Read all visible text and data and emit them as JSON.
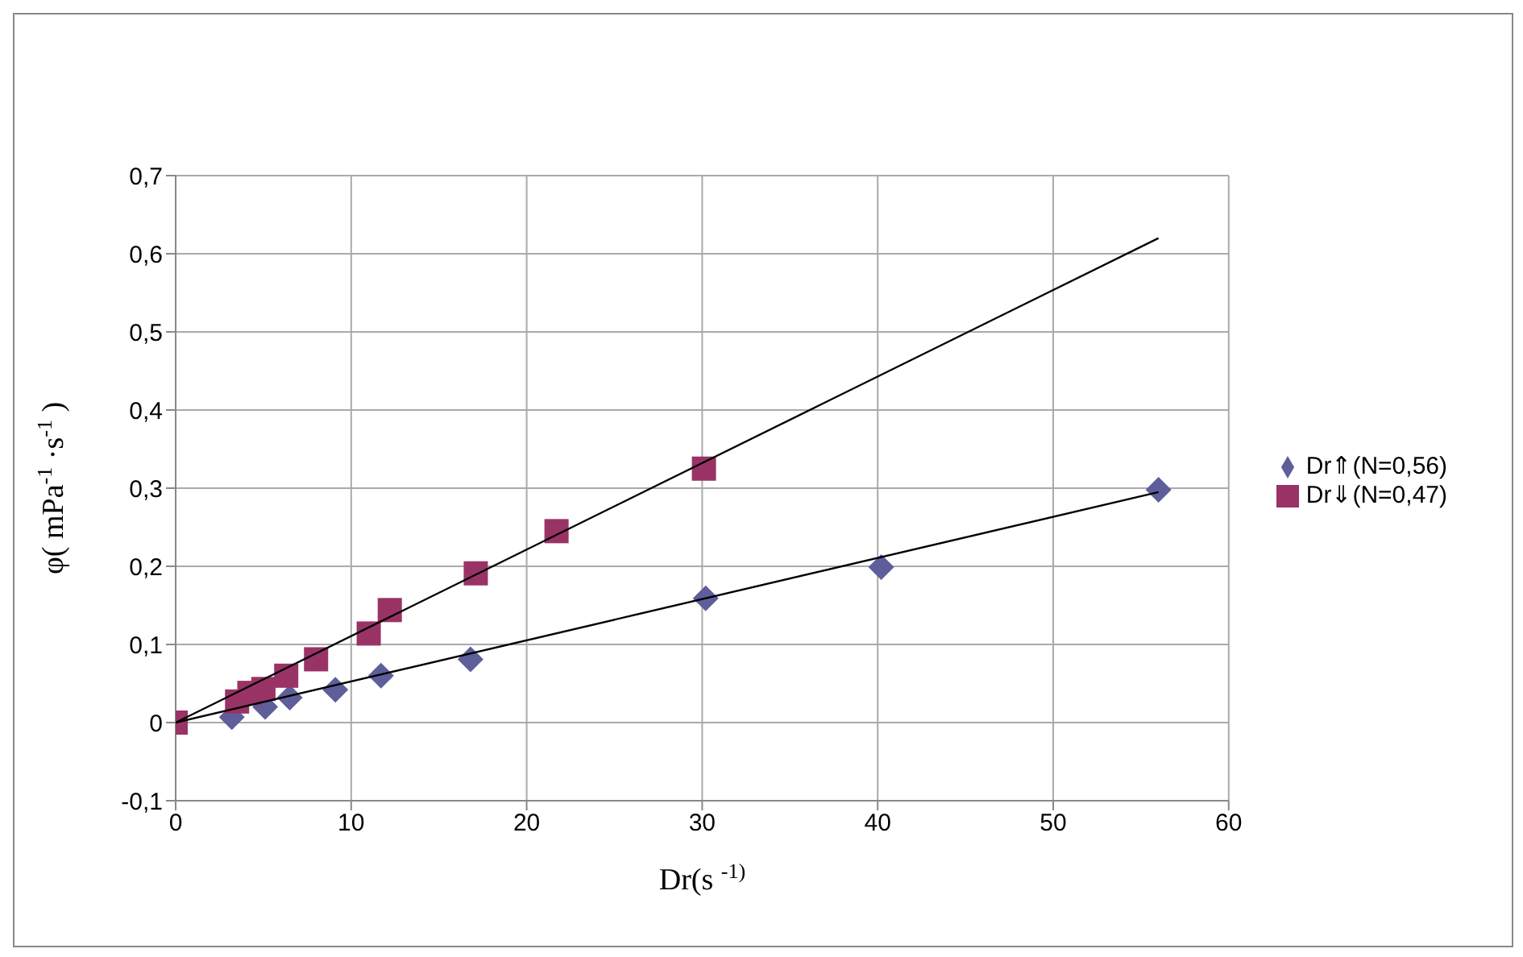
{
  "chart_data": {
    "type": "scatter",
    "xlabel": "Dr(s $^{-1)}$",
    "ylabel": "φ( mPa$^{-1}$ ·s$^{-1}$ )",
    "xlim": [
      0,
      60
    ],
    "xticks": [
      0,
      10,
      20,
      30,
      40,
      50,
      60
    ],
    "ylim": [
      -0.1,
      0.7
    ],
    "yticks": [
      {
        "value": -0.1,
        "label": "-0,1"
      },
      {
        "value": 0,
        "label": "0"
      },
      {
        "value": 0.1,
        "label": "0,1"
      },
      {
        "value": 0.2,
        "label": "0,2"
      },
      {
        "value": 0.3,
        "label": "0,3"
      },
      {
        "value": 0.4,
        "label": "0,4"
      },
      {
        "value": 0.5,
        "label": "0,5"
      },
      {
        "value": 0.6,
        "label": "0,6"
      },
      {
        "value": 0.7,
        "label": "0,7"
      }
    ],
    "grid": true,
    "legend": "right",
    "series": [
      {
        "name": "Dr⇑(N=0,56)",
        "marker": "diamond",
        "color": "#5e5e9a",
        "x": [
          3.2,
          5.1,
          6.5,
          9.1,
          11.7,
          16.8,
          30.2,
          40.2,
          56
        ],
        "values": [
          0.007,
          0.02,
          0.032,
          0.042,
          0.06,
          0.081,
          0.159,
          0.199,
          0.298
        ]
      },
      {
        "name": "Dr⇓(N=0,47)",
        "marker": "square",
        "color": "#993366",
        "x": [
          0,
          3.5,
          4.2,
          5,
          6.3,
          8,
          11,
          12.2,
          17.1,
          21.7,
          30.1
        ],
        "values": [
          0,
          0.027,
          0.038,
          0.043,
          0.06,
          0.081,
          0.114,
          0.144,
          0.191,
          0.245,
          0.325
        ]
      },
      {
        "type": "line",
        "marker": "none",
        "color": "#000000",
        "x": [
          0,
          56
        ],
        "values": [
          0,
          0.295
        ]
      },
      {
        "type": "line",
        "marker": "none",
        "color": "#000000",
        "x": [
          0,
          56
        ],
        "values": [
          0,
          0.62
        ]
      }
    ]
  }
}
